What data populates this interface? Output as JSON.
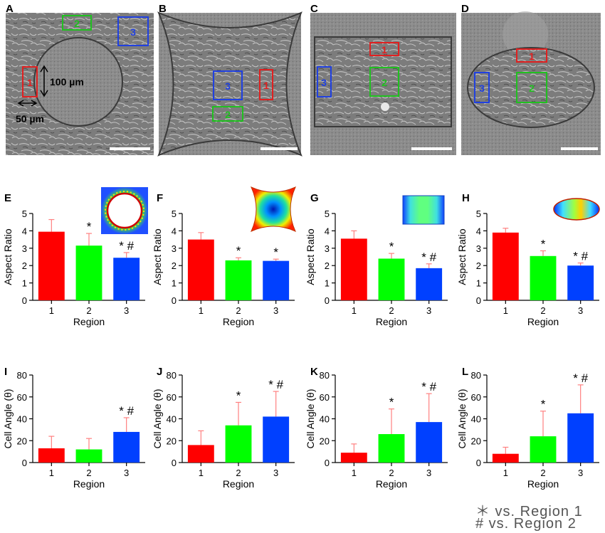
{
  "micrographs": [
    {
      "letter": "A",
      "boxes": [
        {
          "label": "1",
          "color": "#e02020"
        },
        {
          "label": "2",
          "color": "#20c020"
        },
        {
          "label": "3",
          "color": "#2040e0"
        }
      ],
      "annotations": [
        "100 µm",
        "50 µm"
      ]
    },
    {
      "letter": "B",
      "boxes": [
        {
          "label": "1",
          "color": "#e02020"
        },
        {
          "label": "2",
          "color": "#20c020"
        },
        {
          "label": "3",
          "color": "#2040e0"
        }
      ]
    },
    {
      "letter": "C",
      "boxes": [
        {
          "label": "1",
          "color": "#e02020"
        },
        {
          "label": "2",
          "color": "#20c020"
        },
        {
          "label": "3",
          "color": "#2040e0"
        }
      ]
    },
    {
      "letter": "D",
      "boxes": [
        {
          "label": "1",
          "color": "#e02020"
        },
        {
          "label": "2",
          "color": "#20c020"
        },
        {
          "label": "3",
          "color": "#2040e0"
        }
      ]
    }
  ],
  "colors": {
    "region1": "#ff0000",
    "region2": "#00ff00",
    "region3": "#0040ff",
    "error": "#ff8080",
    "image_gray": "#7d7d7d"
  },
  "chart_data": [
    {
      "letter": "E",
      "type": "bar",
      "categories": [
        "1",
        "2",
        "3"
      ],
      "values": [
        3.95,
        3.15,
        2.45
      ],
      "errors": [
        0.7,
        0.7,
        0.3
      ],
      "markers": [
        "",
        "*",
        "* #"
      ],
      "xlabel": "Region",
      "ylabel": "Aspect Ratio",
      "ylim": [
        0,
        5
      ],
      "yticks": [
        "0",
        "1",
        "2",
        "3",
        "4",
        "5"
      ],
      "inset": "circle"
    },
    {
      "letter": "F",
      "type": "bar",
      "categories": [
        "1",
        "2",
        "3"
      ],
      "values": [
        3.5,
        2.3,
        2.27
      ],
      "errors": [
        0.4,
        0.15,
        0.1
      ],
      "markers": [
        "",
        "*",
        "*"
      ],
      "xlabel": "Region",
      "ylabel": "Aspect Ratio",
      "ylim": [
        0,
        5
      ],
      "yticks": [
        "0",
        "1",
        "2",
        "3",
        "4",
        "5"
      ],
      "inset": "star"
    },
    {
      "letter": "G",
      "type": "bar",
      "categories": [
        "1",
        "2",
        "3"
      ],
      "values": [
        3.55,
        2.4,
        1.85
      ],
      "errors": [
        0.45,
        0.3,
        0.25
      ],
      "markers": [
        "",
        "*",
        "* #"
      ],
      "xlabel": "Region",
      "ylabel": "Aspect Ratio",
      "ylim": [
        0,
        5
      ],
      "yticks": [
        "0",
        "1",
        "2",
        "3",
        "4",
        "5"
      ],
      "inset": "rect"
    },
    {
      "letter": "H",
      "type": "bar",
      "categories": [
        "1",
        "2",
        "3"
      ],
      "values": [
        3.9,
        2.55,
        2.0
      ],
      "errors": [
        0.25,
        0.3,
        0.15
      ],
      "markers": [
        "",
        "*",
        "* #"
      ],
      "xlabel": "Region",
      "ylabel": "Aspect Ratio",
      "ylim": [
        0,
        5
      ],
      "yticks": [
        "0",
        "1",
        "2",
        "3",
        "4",
        "5"
      ],
      "inset": "ellipse"
    },
    {
      "letter": "I",
      "type": "bar",
      "categories": [
        "1",
        "2",
        "3"
      ],
      "values": [
        13,
        12,
        28
      ],
      "errors": [
        11,
        10,
        13
      ],
      "markers": [
        "",
        "",
        "* #"
      ],
      "xlabel": "Region",
      "ylabel": "Cell Angle (θ)",
      "ylim": [
        0,
        80
      ],
      "yticks": [
        "0",
        "20",
        "40",
        "60",
        "80"
      ]
    },
    {
      "letter": "J",
      "type": "bar",
      "categories": [
        "1",
        "2",
        "3"
      ],
      "values": [
        16,
        34,
        42
      ],
      "errors": [
        13,
        21,
        23
      ],
      "markers": [
        "",
        "*",
        "* #"
      ],
      "xlabel": "Region",
      "ylabel": "Cell Angle (θ)",
      "ylim": [
        0,
        80
      ],
      "yticks": [
        "0",
        "20",
        "40",
        "60",
        "80"
      ]
    },
    {
      "letter": "K",
      "type": "bar",
      "categories": [
        "1",
        "2",
        "3"
      ],
      "values": [
        9,
        26,
        37
      ],
      "errors": [
        8,
        23,
        26
      ],
      "markers": [
        "",
        "*",
        "* #"
      ],
      "xlabel": "Region",
      "ylabel": "Cell Angle (θ)",
      "ylim": [
        0,
        80
      ],
      "yticks": [
        "0",
        "20",
        "40",
        "60",
        "80"
      ]
    },
    {
      "letter": "L",
      "type": "bar",
      "categories": [
        "1",
        "2",
        "3"
      ],
      "values": [
        8,
        24,
        45
      ],
      "errors": [
        6,
        23,
        26
      ],
      "markers": [
        "",
        "*",
        "* #"
      ],
      "xlabel": "Region",
      "ylabel": "Cell Angle (θ)",
      "ylim": [
        0,
        80
      ],
      "yticks": [
        "0",
        "20",
        "40",
        "60",
        "80"
      ]
    }
  ],
  "footnote": {
    "line1": "＊ vs. Region 1",
    "line2": "# vs. Region 2"
  }
}
